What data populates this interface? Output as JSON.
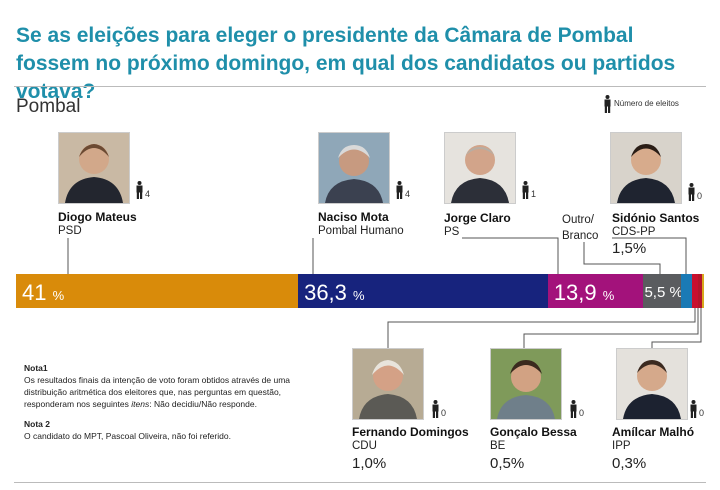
{
  "title": "Se as eleições para eleger o presidente da Câmara de Pombal fossem no próximo domingo, em qual dos candidatos ou partidos votava?",
  "region": "Pombal",
  "legend_label": "Número de eleitos",
  "chart_data": {
    "type": "stacked-bar",
    "title": "Se as eleições para eleger o presidente da Câmara de Pombal fossem no próximo domingo, em qual dos candidatos ou partidos votava?",
    "unit": "%",
    "segments": [
      {
        "name": "Diogo Mateus",
        "party": "PSD",
        "value": 41,
        "label": "41",
        "elected": "4",
        "color": "#d98b0a"
      },
      {
        "name": "Naciso Mota",
        "party": "Pombal Humano",
        "value": 36.3,
        "label": "36,3",
        "elected": "4",
        "color": "#17237d"
      },
      {
        "name": "Jorge Claro",
        "party": "PS",
        "value": 13.9,
        "label": "13,9",
        "elected": "1",
        "color": "#a3127b"
      },
      {
        "name": "Outro/ Branco",
        "party": "",
        "value": 5.5,
        "label": "5,5",
        "elected": "",
        "color": "#5a5c5f"
      },
      {
        "name": "Sidónio Santos",
        "party": "CDS-PP",
        "value": 1.5,
        "label": "1,5",
        "elected": "0",
        "color": "#1a7ab5"
      },
      {
        "name": "Fernando Domingos",
        "party": "CDU",
        "value": 1.0,
        "label": "1,0",
        "elected": "0",
        "color": "#c8102e"
      },
      {
        "name": "Gonçalo Bessa",
        "party": "BE",
        "value": 0.5,
        "label": "0,5",
        "elected": "0",
        "color": "#b3152a"
      },
      {
        "name": "Amílcar Malhó",
        "party": "IPP",
        "value": 0.3,
        "label": "0,3",
        "elected": "0",
        "color": "#d8a81c"
      }
    ]
  },
  "notes": {
    "n1_title": "Nota1",
    "n1_a": "Os resultados finais da intenção de voto foram obtidos através de uma distribuição aritmética dos eleitores que, nas perguntas em questão, responderam nos seguintes ",
    "n1_em": "itens",
    "n1_b": ": Não decidiu/Não responde.",
    "n2_title": "Nota 2",
    "n2_text": "O candidato do MPT, Pascoal Oliveira, não foi referido."
  }
}
